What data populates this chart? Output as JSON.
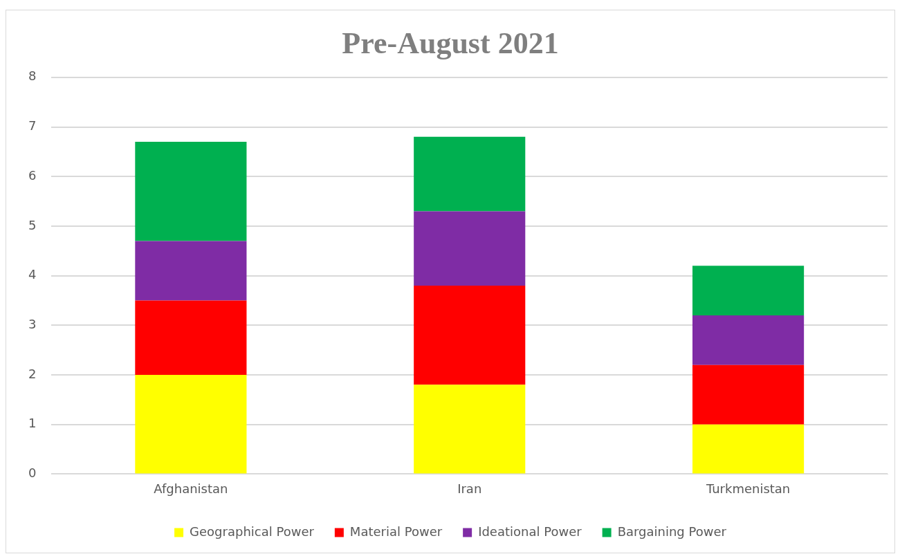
{
  "chart_data": {
    "type": "bar",
    "title": "Pre-August 2021",
    "categories": [
      "Afghanistan",
      "Iran",
      "Turkmenistan"
    ],
    "stacked": true,
    "series": [
      {
        "name": "Geographical Power",
        "color": "#ffff00",
        "values": [
          2.0,
          1.8,
          1.0
        ]
      },
      {
        "name": "Material Power",
        "color": "#ff0000",
        "values": [
          1.5,
          2.0,
          1.2
        ]
      },
      {
        "name": "Ideational Power",
        "color": "#7f2ca5",
        "values": [
          1.2,
          1.5,
          1.0
        ]
      },
      {
        "name": "Bargaining Power",
        "color": "#00b050",
        "values": [
          2.0,
          1.5,
          1.0
        ]
      }
    ],
    "ylim": [
      0,
      8
    ],
    "yticks": [
      0,
      1,
      2,
      3,
      4,
      5,
      6,
      7,
      8
    ],
    "grid": "y",
    "legend": "bottom"
  }
}
